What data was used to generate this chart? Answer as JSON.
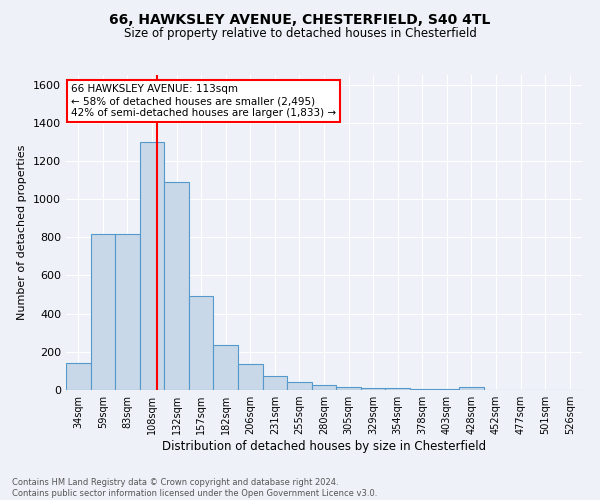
{
  "title_line1": "66, HAWKSLEY AVENUE, CHESTERFIELD, S40 4TL",
  "title_line2": "Size of property relative to detached houses in Chesterfield",
  "xlabel": "Distribution of detached houses by size in Chesterfield",
  "ylabel": "Number of detached properties",
  "footer_line1": "Contains HM Land Registry data © Crown copyright and database right 2024.",
  "footer_line2": "Contains public sector information licensed under the Open Government Licence v3.0.",
  "annotation_line1": "66 HAWKSLEY AVENUE: 113sqm",
  "annotation_line2": "← 58% of detached houses are smaller (2,495)",
  "annotation_line3": "42% of semi-detached houses are larger (1,833) →",
  "bar_labels": [
    "34sqm",
    "59sqm",
    "83sqm",
    "108sqm",
    "132sqm",
    "157sqm",
    "182sqm",
    "206sqm",
    "231sqm",
    "255sqm",
    "280sqm",
    "305sqm",
    "329sqm",
    "354sqm",
    "378sqm",
    "403sqm",
    "428sqm",
    "452sqm",
    "477sqm",
    "501sqm",
    "526sqm"
  ],
  "bar_values": [
    140,
    815,
    815,
    1300,
    1090,
    490,
    235,
    135,
    75,
    40,
    25,
    15,
    10,
    8,
    5,
    3,
    15,
    0,
    0,
    0,
    0
  ],
  "bar_color": "#c8d8e8",
  "bar_edge_color": "#5599cc",
  "ylim": [
    0,
    1650
  ],
  "yticks": [
    0,
    200,
    400,
    600,
    800,
    1000,
    1200,
    1400,
    1600
  ],
  "bg_color": "#eef2f8",
  "grid_color": "white",
  "annotation_box_color": "white",
  "annotation_box_edge": "red"
}
